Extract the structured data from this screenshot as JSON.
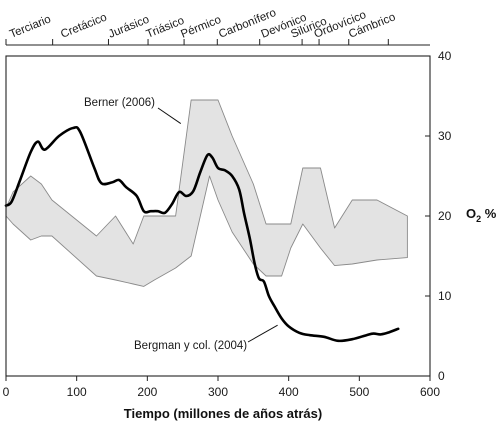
{
  "chart_data": {
    "type": "line",
    "xlabel": "Tiempo (millones de años atrás)",
    "ylabel": "O",
    "ylabel_sub": "2",
    "ylabel_unit": " %",
    "xlim": [
      0,
      600
    ],
    "ylim": [
      0,
      40
    ],
    "x_ticks": [
      0,
      100,
      200,
      300,
      400,
      500,
      600
    ],
    "y_ticks": [
      0,
      10,
      20,
      30,
      40
    ],
    "grid": false,
    "periods": [
      {
        "label": "Terciario",
        "start": 0,
        "end": 66
      },
      {
        "label": "Cretácico",
        "start": 66,
        "end": 145
      },
      {
        "label": "Jurásico",
        "start": 145,
        "end": 201
      },
      {
        "label": "Triásico",
        "start": 201,
        "end": 252
      },
      {
        "label": "Pérmico",
        "start": 252,
        "end": 299
      },
      {
        "label": "Carbonífero",
        "start": 299,
        "end": 359
      },
      {
        "label": "Devónico",
        "start": 359,
        "end": 419
      },
      {
        "label": "Silúrico",
        "start": 419,
        "end": 443
      },
      {
        "label": "Ordovícico",
        "start": 443,
        "end": 485
      },
      {
        "label": "Cámbrico",
        "start": 485,
        "end": 541
      }
    ],
    "series": [
      {
        "name": "Berner (2006)",
        "kind": "band",
        "fill": "#e3e3e3",
        "stroke": "#8a8a8a",
        "x": [
          0,
          10,
          35,
          50,
          65,
          128,
          155,
          180,
          195,
          210,
          240,
          262,
          288,
          300,
          320,
          350,
          368,
          380,
          390,
          403,
          420,
          445,
          465,
          490,
          525,
          568
        ],
        "upper": [
          21,
          23,
          25,
          24,
          22,
          17.5,
          20,
          16.5,
          20,
          20,
          20,
          34.5,
          34.5,
          34.5,
          30,
          24,
          19,
          19,
          19,
          19,
          26,
          26,
          18.5,
          22,
          22,
          20
        ],
        "lower": [
          20,
          19,
          17,
          17.5,
          17.5,
          12.5,
          12,
          11.5,
          11.2,
          12,
          13.5,
          15,
          25,
          22,
          18,
          14,
          12.5,
          12.5,
          12.5,
          16,
          19,
          16,
          13.8,
          14,
          14.5,
          14.8
        ]
      },
      {
        "name": "Bergman y col. (2004)",
        "kind": "line",
        "stroke": "#000000",
        "x": [
          0,
          8,
          20,
          35,
          45,
          55,
          75,
          95,
          105,
          125,
          135,
          150,
          160,
          170,
          185,
          195,
          205,
          215,
          225,
          235,
          245,
          255,
          265,
          275,
          285,
          292,
          300,
          310,
          320,
          330,
          337,
          345,
          352,
          358,
          365,
          372,
          380,
          390,
          400,
          415,
          430,
          450,
          470,
          490,
          510,
          520,
          530,
          540,
          555
        ],
        "y": [
          21.3,
          21.8,
          24.5,
          28,
          29.3,
          28.3,
          30,
          31,
          30.5,
          26,
          24.1,
          24.2,
          24.5,
          23.6,
          22.5,
          20.6,
          20.6,
          20.6,
          20.4,
          21.5,
          23,
          22.5,
          23.1,
          25.5,
          27.6,
          27.3,
          26,
          25.7,
          25,
          23.3,
          20.3,
          17.2,
          14,
          12.2,
          11.8,
          10,
          8.7,
          7.2,
          6.2,
          5.4,
          5.1,
          4.9,
          4.4,
          4.6,
          5.1,
          5.3,
          5.2,
          5.4,
          5.9
        ]
      }
    ],
    "annotations": [
      {
        "text": "Berner (2006)",
        "target_x": 253,
        "target_y": 31.3
      },
      {
        "text": "Bergman y col. (2004)",
        "target_x": 390,
        "target_y": 6.6
      }
    ]
  }
}
